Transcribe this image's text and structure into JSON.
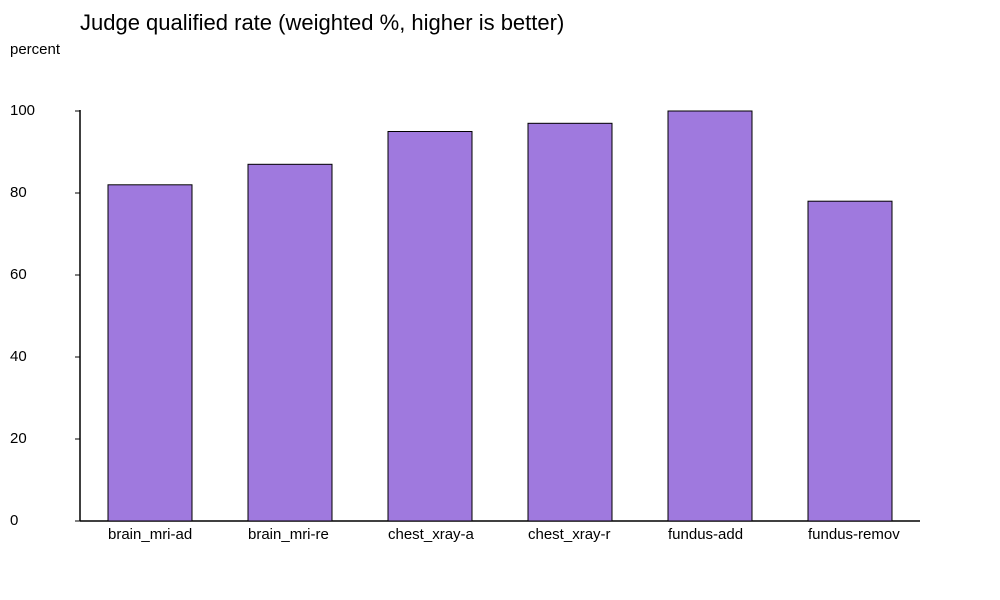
{
  "chart_data": {
    "type": "bar",
    "title": "Judge qualified rate (weighted %, higher is better)",
    "ylabel": "percent",
    "categories": [
      "brain_mri-ad",
      "brain_mri-re",
      "chest_xray-a",
      "chest_xray-r",
      "fundus-add",
      "fundus-remov"
    ],
    "values": [
      82,
      87,
      95,
      97,
      100,
      78
    ],
    "color": "#9f79de",
    "ylim": [
      0,
      100
    ],
    "yticks": [
      0,
      20,
      40,
      60,
      80,
      100
    ],
    "grid": false
  }
}
